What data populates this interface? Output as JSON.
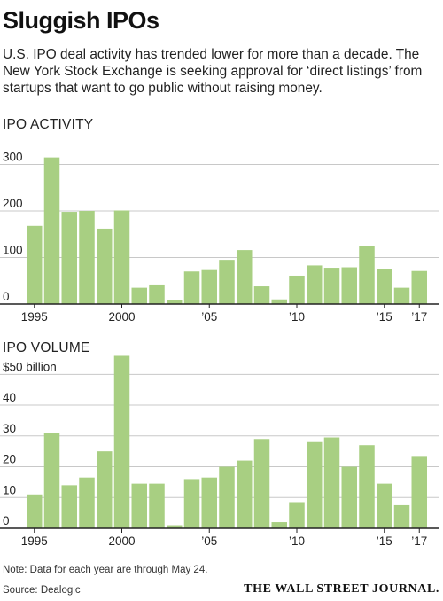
{
  "headline": "Sluggish IPOs",
  "dek": "U.S. IPO deal activity has trended lower for more than a decade. The New York Stock Exchange is seeking approval for ‘direct listings’ from startups that want to go public without raising money.",
  "note": "Note: Data for each year are through May 24.",
  "source": "Source: Dealogic",
  "publisher": "THE WALL STREET JOURNAL.",
  "colors": {
    "bar": "#a8cf82",
    "grid": "#c8c8c8",
    "axis": "#222222",
    "text": "#222222"
  },
  "chart_data": [
    {
      "type": "bar",
      "title": "IPO ACTIVITY",
      "categories": [
        1995,
        1996,
        1997,
        1998,
        1999,
        2000,
        2001,
        2002,
        2003,
        2004,
        2005,
        2006,
        2007,
        2008,
        2009,
        2010,
        2011,
        2012,
        2013,
        2014,
        2015,
        2016,
        2017
      ],
      "values": [
        168,
        315,
        198,
        200,
        162,
        201,
        35,
        42,
        8,
        70,
        73,
        95,
        116,
        38,
        10,
        61,
        83,
        78,
        79,
        124,
        75,
        35,
        71
      ],
      "ylim": [
        0,
        320
      ],
      "yticks": [
        0,
        100,
        200,
        300
      ],
      "ytick_labels": [
        "0",
        "100",
        "200",
        "300"
      ],
      "xtick_labels": [
        {
          "year": 1995,
          "label": "1995"
        },
        {
          "year": 2000,
          "label": "2000"
        },
        {
          "year": 2005,
          "label": "’05"
        },
        {
          "year": 2010,
          "label": "’10"
        },
        {
          "year": 2015,
          "label": "’15"
        },
        {
          "year": 2017,
          "label": "’17"
        }
      ],
      "grid": true
    },
    {
      "type": "bar",
      "title": "IPO VOLUME",
      "categories": [
        1995,
        1996,
        1997,
        1998,
        1999,
        2000,
        2001,
        2002,
        2003,
        2004,
        2005,
        2006,
        2007,
        2008,
        2009,
        2010,
        2011,
        2012,
        2013,
        2014,
        2015,
        2016,
        2017
      ],
      "values": [
        11,
        31,
        14,
        16.5,
        25,
        56,
        14.5,
        14.5,
        1,
        16,
        16.5,
        20,
        22,
        29,
        2,
        8.5,
        28,
        29.5,
        20,
        27,
        14.5,
        7.5,
        23.5
      ],
      "ylim": [
        0,
        57
      ],
      "yticks": [
        0,
        10,
        20,
        30,
        40,
        50
      ],
      "ytick_labels": [
        "0",
        "10",
        "20",
        "30",
        "40",
        "$50 billion"
      ],
      "xtick_labels": [
        {
          "year": 1995,
          "label": "1995"
        },
        {
          "year": 2000,
          "label": "2000"
        },
        {
          "year": 2005,
          "label": "’05"
        },
        {
          "year": 2010,
          "label": "’10"
        },
        {
          "year": 2015,
          "label": "’15"
        },
        {
          "year": 2017,
          "label": "’17"
        }
      ],
      "grid": true
    }
  ]
}
